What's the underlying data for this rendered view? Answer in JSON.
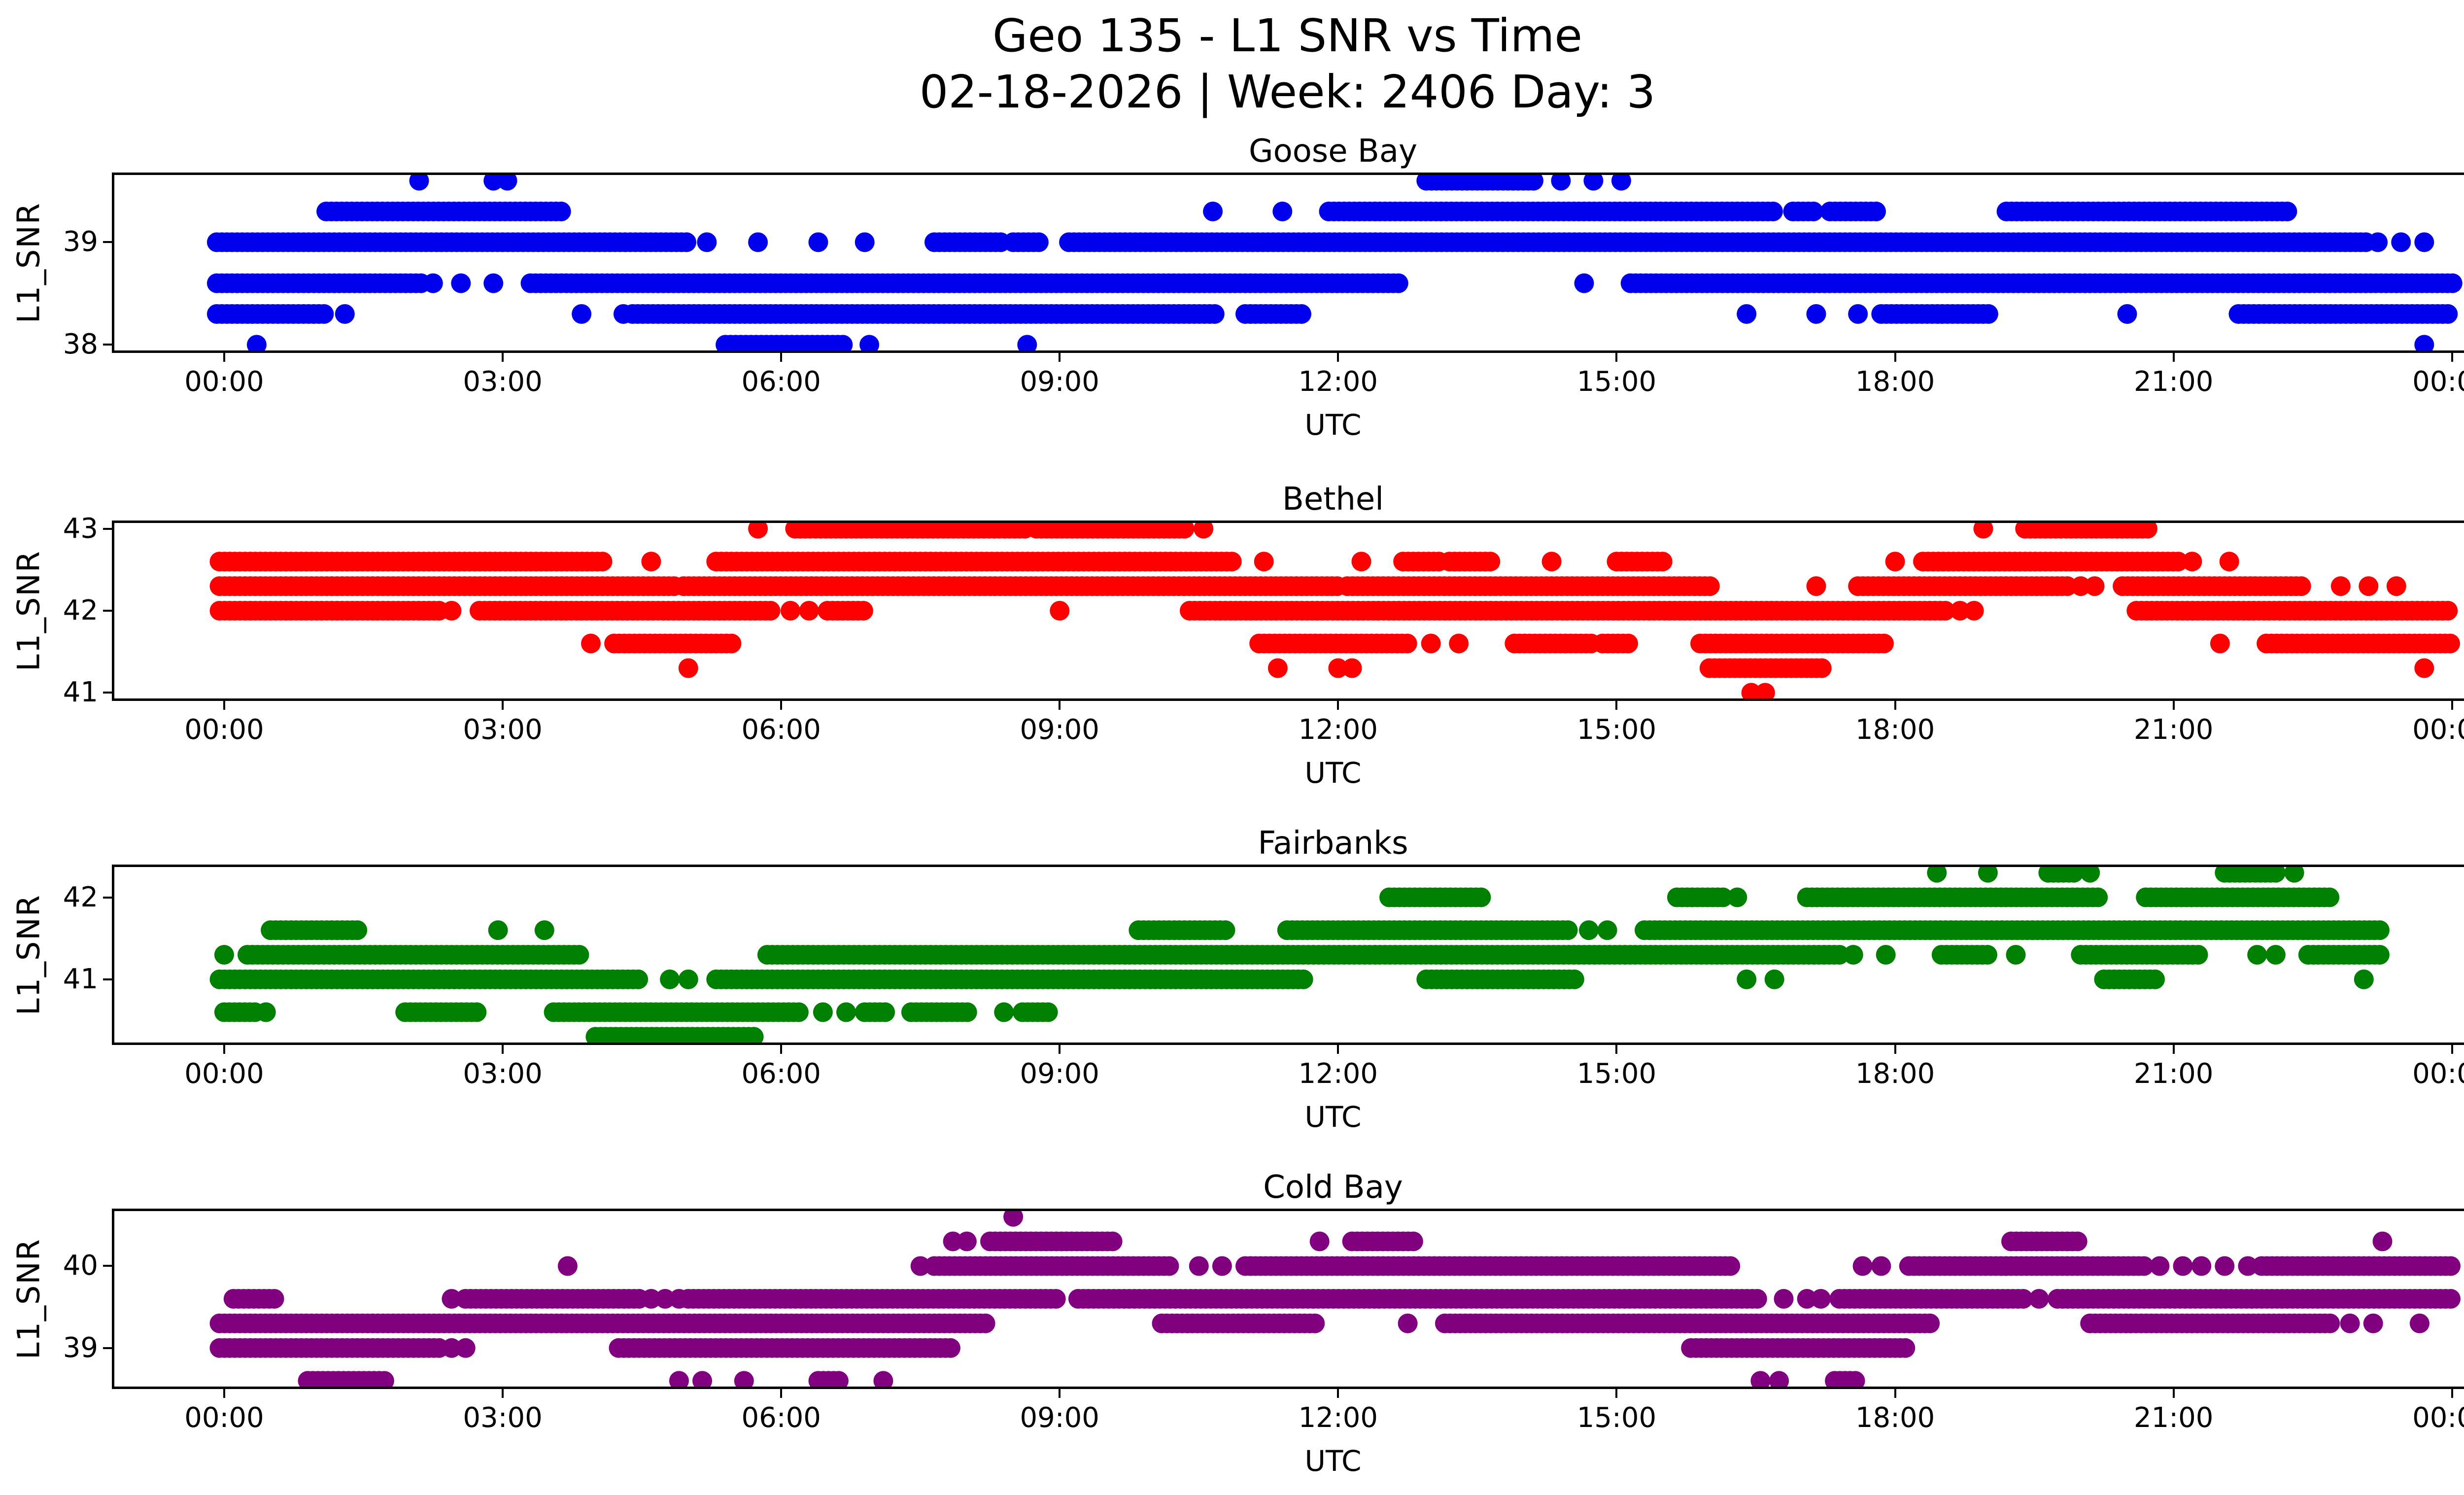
{
  "title": {
    "line1": "Geo 135 - L1 SNR vs Time",
    "line2": "02-18-2026 | Week: 2406 Day: 3"
  },
  "xlabel": "UTC",
  "ylabel": "L1_SNR",
  "x_tick_labels": [
    "00:00",
    "03:00",
    "06:00",
    "09:00",
    "12:00",
    "15:00",
    "18:00",
    "21:00",
    "00:00"
  ],
  "x_tick_hours": [
    0,
    3,
    6,
    9,
    12,
    15,
    18,
    21,
    24
  ],
  "xlim": [
    -1.21,
    25.1
  ],
  "chart_data": [
    {
      "type": "scatter",
      "title": "Goose Bay",
      "color": "#0000ee",
      "ylim": [
        37.92,
        39.68
      ],
      "yticks": [
        38,
        39
      ],
      "ytick_labels": [
        "38",
        "39"
      ],
      "x_unit": "hours UTC",
      "series": {
        "name": "L1_SNR",
        "bands": [
          {
            "snr": 39.6,
            "segments": [
              [
                2.1
              ],
              [
                2.9
              ],
              [
                3.05
              ],
              [
                12.95,
                14.1
              ],
              [
                14.4
              ],
              [
                14.75
              ],
              [
                15.05
              ]
            ]
          },
          {
            "snr": 39.3,
            "segments": [
              [
                1.1,
                3.65
              ],
              [
                10.65
              ],
              [
                11.4
              ],
              [
                11.9,
                16.7
              ],
              [
                16.9,
                17.1
              ],
              [
                17.3,
                17.8
              ],
              [
                19.2,
                22.2
              ]
            ]
          },
          {
            "snr": 39.0,
            "segments": [
              [
                -0.08,
                5.0
              ],
              [
                5.2
              ],
              [
                5.75
              ],
              [
                6.4
              ],
              [
                6.9
              ],
              [
                7.65,
                8.35
              ],
              [
                8.5,
                8.8
              ],
              [
                9.1,
                23.05
              ],
              [
                23.2
              ],
              [
                23.45
              ],
              [
                23.7
              ]
            ]
          },
          {
            "snr": 38.6,
            "segments": [
              [
                -0.08,
                2.1
              ],
              [
                2.25
              ],
              [
                2.55
              ],
              [
                2.9
              ],
              [
                3.3,
                12.65
              ],
              [
                14.65
              ],
              [
                15.15,
                24.0
              ]
            ]
          },
          {
            "snr": 38.3,
            "segments": [
              [
                -0.08,
                1.1
              ],
              [
                1.3
              ],
              [
                3.85
              ],
              [
                4.3
              ],
              [
                4.4,
                10.65
              ],
              [
                11.0,
                11.6
              ],
              [
                16.4
              ],
              [
                17.15
              ],
              [
                17.6
              ],
              [
                17.85,
                19.0
              ],
              [
                20.5
              ],
              [
                21.7,
                23.95
              ]
            ]
          },
          {
            "snr": 38.0,
            "segments": [
              [
                0.35
              ],
              [
                5.4,
                6.65
              ],
              [
                6.95
              ],
              [
                8.65
              ],
              [
                23.7
              ]
            ]
          }
        ]
      }
    },
    {
      "type": "scatter",
      "title": "Bethel",
      "color": "#ff0000",
      "ylim": [
        40.9,
        43.1
      ],
      "yticks": [
        41,
        42,
        43
      ],
      "ytick_labels": [
        "41",
        "42",
        "43"
      ],
      "x_unit": "hours UTC",
      "series": {
        "name": "L1_SNR",
        "bands": [
          {
            "snr": 43.0,
            "segments": [
              [
                5.75
              ],
              [
                6.15,
                8.6
              ],
              [
                8.75,
                10.35
              ],
              [
                10.55
              ],
              [
                18.95
              ],
              [
                19.4,
                20.7
              ]
            ]
          },
          {
            "snr": 42.6,
            "segments": [
              [
                -0.05,
                4.1
              ],
              [
                4.6
              ],
              [
                5.3,
                10.85
              ],
              [
                11.2
              ],
              [
                12.25
              ],
              [
                12.7,
                13.1
              ],
              [
                13.2,
                13.65
              ],
              [
                14.3
              ],
              [
                15.0,
                15.5
              ],
              [
                18.0
              ],
              [
                18.3,
                21.05
              ],
              [
                21.2
              ],
              [
                21.6
              ]
            ]
          },
          {
            "snr": 42.3,
            "segments": [
              [
                -0.05,
                4.85
              ],
              [
                4.95,
                12.0
              ],
              [
                12.1,
                16.0
              ],
              [
                17.15
              ],
              [
                17.6,
                19.85
              ],
              [
                20.0
              ],
              [
                20.15
              ],
              [
                20.45,
                22.4
              ],
              [
                22.8
              ],
              [
                23.1
              ],
              [
                23.4
              ]
            ]
          },
          {
            "snr": 42.0,
            "segments": [
              [
                -0.05,
                2.3
              ],
              [
                2.45
              ],
              [
                2.75,
                5.9
              ],
              [
                6.1
              ],
              [
                6.3
              ],
              [
                6.5,
                6.9
              ],
              [
                9.0
              ],
              [
                10.4,
                18.55
              ],
              [
                18.7
              ],
              [
                18.85
              ],
              [
                20.6,
                23.98
              ]
            ]
          },
          {
            "snr": 41.6,
            "segments": [
              [
                3.95
              ],
              [
                4.2,
                5.45
              ],
              [
                11.15,
                12.75
              ],
              [
                13.0
              ],
              [
                13.3
              ],
              [
                13.9,
                14.7
              ],
              [
                14.85,
                15.1
              ],
              [
                15.9,
                17.9
              ],
              [
                21.5
              ],
              [
                22.0,
                23.98
              ]
            ]
          },
          {
            "snr": 41.3,
            "segments": [
              [
                5.0
              ],
              [
                11.35
              ],
              [
                12.0
              ],
              [
                12.15
              ],
              [
                16.0,
                17.2
              ],
              [
                23.7
              ]
            ]
          },
          {
            "snr": 41.0,
            "segments": [
              [
                16.45
              ],
              [
                16.6
              ]
            ]
          }
        ]
      }
    },
    {
      "type": "scatter",
      "title": "Fairbanks",
      "color": "#008000",
      "ylim": [
        40.2,
        42.4
      ],
      "yticks": [
        41,
        42
      ],
      "ytick_labels": [
        "41",
        "42"
      ],
      "x_unit": "hours UTC",
      "series": {
        "name": "L1_SNR",
        "bands": [
          {
            "snr": 42.3,
            "segments": [
              [
                18.45
              ],
              [
                19.0
              ],
              [
                19.65,
                19.95
              ],
              [
                20.1
              ],
              [
                21.55,
                22.1
              ],
              [
                22.3
              ]
            ]
          },
          {
            "snr": 42.0,
            "segments": [
              [
                12.55,
                13.55
              ],
              [
                15.65,
                16.15
              ],
              [
                16.3
              ],
              [
                17.05,
                20.2
              ],
              [
                20.7,
                22.7
              ]
            ]
          },
          {
            "snr": 41.6,
            "segments": [
              [
                0.5,
                1.45
              ],
              [
                2.95
              ],
              [
                3.45
              ],
              [
                9.85,
                10.8
              ],
              [
                11.45,
                14.5
              ],
              [
                14.7
              ],
              [
                14.9
              ],
              [
                15.3,
                23.2
              ]
            ]
          },
          {
            "snr": 41.3,
            "segments": [
              [
                0.0
              ],
              [
                0.25,
                3.85
              ],
              [
                5.85,
                17.4
              ],
              [
                17.55
              ],
              [
                17.9
              ],
              [
                18.5,
                19.0
              ],
              [
                19.3
              ],
              [
                20.0,
                21.25
              ],
              [
                21.9
              ],
              [
                22.1
              ],
              [
                22.45,
                23.2
              ]
            ]
          },
          {
            "snr": 41.0,
            "segments": [
              [
                -0.05,
                4.45
              ],
              [
                4.8
              ],
              [
                5.0
              ],
              [
                5.3,
                11.6
              ],
              [
                12.95,
                14.55
              ],
              [
                16.4
              ],
              [
                16.7
              ],
              [
                20.25,
                20.8
              ],
              [
                23.05
              ]
            ]
          },
          {
            "snr": 40.6,
            "segments": [
              [
                0.0,
                0.35
              ],
              [
                0.45
              ],
              [
                1.95,
                2.7
              ],
              [
                3.55,
                6.2
              ],
              [
                6.45
              ],
              [
                6.7
              ],
              [
                6.9,
                7.1
              ],
              [
                7.4,
                8.0
              ],
              [
                8.4
              ],
              [
                8.6,
                8.9
              ]
            ]
          },
          {
            "snr": 40.3,
            "segments": [
              [
                4.0,
                5.7
              ]
            ]
          }
        ]
      }
    },
    {
      "type": "scatter",
      "title": "Cold Bay",
      "color": "#800080",
      "ylim": [
        38.5,
        40.7
      ],
      "yticks": [
        39,
        40
      ],
      "ytick_labels": [
        "39",
        "40"
      ],
      "x_unit": "hours UTC",
      "series": {
        "name": "L1_SNR",
        "bands": [
          {
            "snr": 40.6,
            "segments": [
              [
                8.5
              ]
            ]
          },
          {
            "snr": 40.3,
            "segments": [
              [
                7.85
              ],
              [
                8.0
              ],
              [
                8.25,
                9.55
              ],
              [
                11.8
              ],
              [
                12.15,
                12.8
              ],
              [
                19.25,
                19.95
              ],
              [
                23.25
              ]
            ]
          },
          {
            "snr": 40.0,
            "segments": [
              [
                3.7
              ],
              [
                7.5
              ],
              [
                7.65,
                10.2
              ],
              [
                10.5
              ],
              [
                10.75
              ],
              [
                11.0,
                16.2
              ],
              [
                17.65
              ],
              [
                17.85
              ],
              [
                18.15,
                20.7
              ],
              [
                20.85
              ],
              [
                21.1
              ],
              [
                21.3
              ],
              [
                21.55
              ],
              [
                21.8
              ],
              [
                21.95,
                24.0
              ]
            ]
          },
          {
            "snr": 39.6,
            "segments": [
              [
                0.1,
                0.55
              ],
              [
                2.45
              ],
              [
                2.6,
                4.45
              ],
              [
                4.6
              ],
              [
                4.75
              ],
              [
                4.9
              ],
              [
                5.0,
                8.95
              ],
              [
                9.2,
                16.5
              ],
              [
                16.8
              ],
              [
                17.05
              ],
              [
                17.2
              ],
              [
                17.4,
                19.4
              ],
              [
                19.55
              ],
              [
                19.75,
                24.0
              ]
            ]
          },
          {
            "snr": 39.3,
            "segments": [
              [
                -0.05,
                8.2
              ],
              [
                10.1,
                11.75
              ],
              [
                12.75
              ],
              [
                13.15,
                18.4
              ],
              [
                20.1,
                22.7
              ],
              [
                22.9
              ],
              [
                23.15
              ],
              [
                23.65
              ]
            ]
          },
          {
            "snr": 39.0,
            "segments": [
              [
                -0.05,
                2.3
              ],
              [
                2.45
              ],
              [
                2.6
              ],
              [
                4.25,
                7.8
              ],
              [
                15.8,
                18.1
              ]
            ]
          },
          {
            "snr": 38.6,
            "segments": [
              [
                0.9,
                1.75
              ],
              [
                4.9
              ],
              [
                5.15
              ],
              [
                5.6
              ],
              [
                6.4,
                6.6
              ],
              [
                7.1
              ],
              [
                16.55
              ],
              [
                16.75
              ],
              [
                17.35,
                17.55
              ]
            ]
          }
        ]
      }
    }
  ]
}
